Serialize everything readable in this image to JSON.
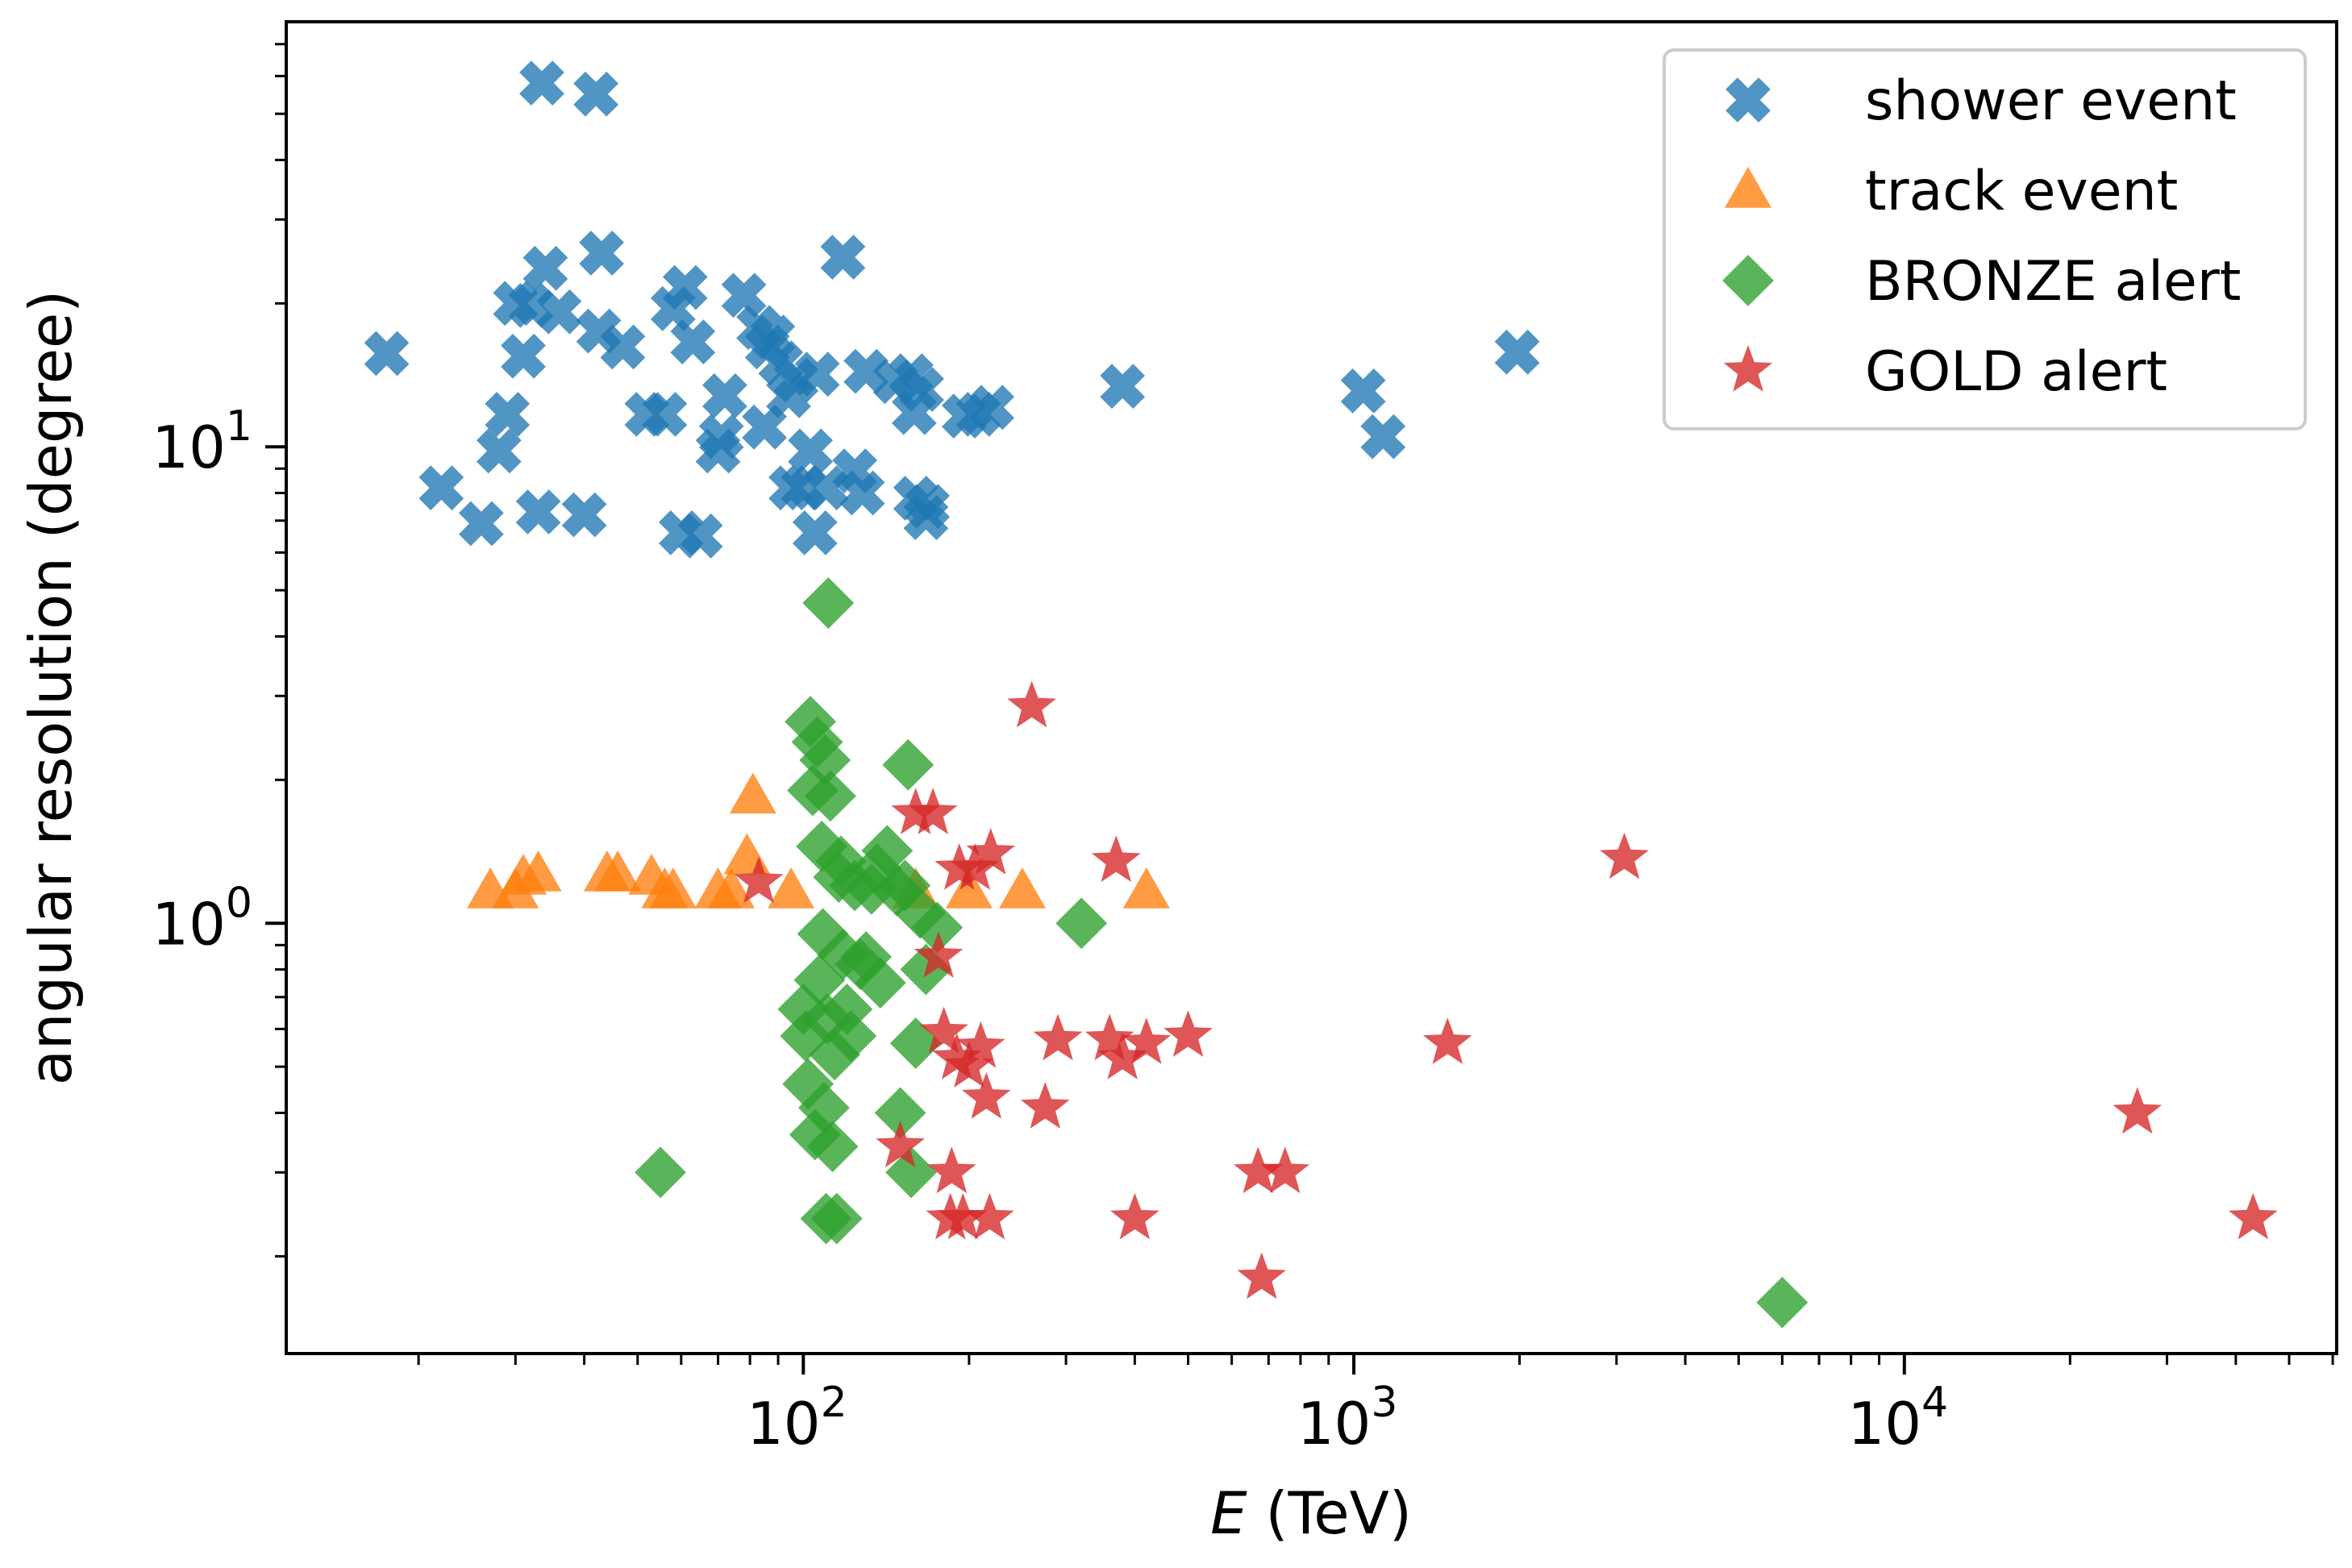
{
  "chart_data": {
    "type": "scatter",
    "title": "",
    "xlabel_var": "E",
    "xlabel_unit": " (TeV)",
    "ylabel": "angular resolution (degree)",
    "xscale": "log",
    "yscale": "log",
    "xlim": [
      11.5,
      61000
    ],
    "ylim": [
      0.125,
      78
    ],
    "x_ticks": [
      {
        "value": 100,
        "base": "10",
        "exp": "2"
      },
      {
        "value": 1000,
        "base": "10",
        "exp": "3"
      },
      {
        "value": 10000,
        "base": "10",
        "exp": "4"
      }
    ],
    "y_ticks": [
      {
        "value": 1,
        "base": "10",
        "exp": "0"
      },
      {
        "value": 10,
        "base": "10",
        "exp": "1"
      }
    ],
    "legend_position": "top-right",
    "series": [
      {
        "name": "shower event",
        "marker": "x",
        "color": "#1f77b4",
        "points": [
          [
            17.5,
            15.7
          ],
          [
            22,
            8.2
          ],
          [
            26,
            6.9
          ],
          [
            28,
            9.8
          ],
          [
            29,
            11.7
          ],
          [
            30,
            20
          ],
          [
            31,
            15.5
          ],
          [
            32,
            19.8
          ],
          [
            33,
            7.3
          ],
          [
            33.5,
            58
          ],
          [
            34,
            23.7
          ],
          [
            36,
            19.2
          ],
          [
            40,
            7.2
          ],
          [
            42,
            55
          ],
          [
            42.5,
            17.5
          ],
          [
            43,
            25.5
          ],
          [
            47,
            16.2
          ],
          [
            52,
            11.7
          ],
          [
            56,
            11.7
          ],
          [
            58,
            19.5
          ],
          [
            60,
            6.6
          ],
          [
            61,
            21.6
          ],
          [
            63,
            16.6
          ],
          [
            65,
            6.5
          ],
          [
            70,
            9.8
          ],
          [
            71,
            10.5
          ],
          [
            72,
            12.8
          ],
          [
            78,
            20.8
          ],
          [
            83,
            17.8
          ],
          [
            85,
            11
          ],
          [
            86,
            16.2
          ],
          [
            88,
            17
          ],
          [
            91,
            15
          ],
          [
            94,
            12.8
          ],
          [
            95,
            8.2
          ],
          [
            97,
            13.8
          ],
          [
            100,
            8.2
          ],
          [
            103,
            9.8
          ],
          [
            105,
            6.6
          ],
          [
            106,
            14.2
          ],
          [
            110,
            8.2
          ],
          [
            118,
            25
          ],
          [
            124,
            8.9
          ],
          [
            128,
            8
          ],
          [
            130,
            14.4
          ],
          [
            147,
            13.7
          ],
          [
            157,
            14.1
          ],
          [
            159,
            11.8
          ],
          [
            160,
            7.8
          ],
          [
            164,
            13.2
          ],
          [
            167,
            7.1
          ],
          [
            168,
            7.5
          ],
          [
            196,
            11.6
          ],
          [
            208,
            11.7
          ],
          [
            220,
            12.1
          ],
          [
            380,
            13.4
          ],
          [
            1040,
            13.1
          ],
          [
            1130,
            10.5
          ],
          [
            1980,
            15.8
          ]
        ]
      },
      {
        "name": "track event",
        "marker": "triangle",
        "color": "#ff7f0e",
        "points": [
          [
            27,
            1.17
          ],
          [
            30,
            1.17
          ],
          [
            31,
            1.25
          ],
          [
            33,
            1.27
          ],
          [
            44,
            1.27
          ],
          [
            46,
            1.27
          ],
          [
            53,
            1.25
          ],
          [
            56,
            1.17
          ],
          [
            58,
            1.17
          ],
          [
            70,
            1.17
          ],
          [
            74,
            1.17
          ],
          [
            79,
            1.38
          ],
          [
            81,
            1.85
          ],
          [
            95,
            1.17
          ],
          [
            160,
            1.17
          ],
          [
            200,
            1.17
          ],
          [
            250,
            1.17
          ],
          [
            420,
            1.17
          ]
        ]
      },
      {
        "name": "BRONZE alert",
        "marker": "diamond",
        "color": "#2ca02c",
        "points": [
          [
            55,
            0.3
          ],
          [
            100,
            0.66
          ],
          [
            101,
            0.58
          ],
          [
            102,
            0.46
          ],
          [
            103,
            2.65
          ],
          [
            104,
            1.9
          ],
          [
            105,
            0.36
          ],
          [
            106,
            2.4
          ],
          [
            107,
            0.76
          ],
          [
            108,
            1.45
          ],
          [
            108.5,
            0.95
          ],
          [
            109,
            0.41
          ],
          [
            109.5,
            2.2
          ],
          [
            110,
            0.24
          ],
          [
            110.5,
            0.63
          ],
          [
            111,
            4.7
          ],
          [
            112,
            1.85
          ],
          [
            113,
            0.34
          ],
          [
            114,
            0.53
          ],
          [
            115,
            0.24
          ],
          [
            116,
            1.25
          ],
          [
            117,
            1.35
          ],
          [
            118,
            0.86
          ],
          [
            120,
            0.66
          ],
          [
            122,
            0.58
          ],
          [
            124,
            1.2
          ],
          [
            127,
            0.82
          ],
          [
            130,
            0.85
          ],
          [
            133,
            1.18
          ],
          [
            136,
            1.3
          ],
          [
            138,
            0.75
          ],
          [
            142,
            1.42
          ],
          [
            148,
            1.17
          ],
          [
            150,
            0.4
          ],
          [
            153,
            1.2
          ],
          [
            155,
            2.15
          ],
          [
            157,
            0.3
          ],
          [
            160,
            0.56
          ],
          [
            163,
            1.05
          ],
          [
            167,
            0.8
          ],
          [
            175,
            0.98
          ],
          [
            320,
            1.0
          ],
          [
            6000,
            0.16
          ]
        ]
      },
      {
        "name": "GOLD alert",
        "marker": "star",
        "color": "#d62728",
        "points": [
          [
            83,
            1.22
          ],
          [
            150,
            0.34
          ],
          [
            160,
            1.7
          ],
          [
            172,
            1.7
          ],
          [
            176,
            0.85
          ],
          [
            180,
            0.59
          ],
          [
            185,
            0.24
          ],
          [
            186,
            0.3
          ],
          [
            190,
            0.52
          ],
          [
            192,
            1.3
          ],
          [
            195,
            0.24
          ],
          [
            200,
            0.5
          ],
          [
            205,
            1.3
          ],
          [
            210,
            0.55
          ],
          [
            215,
            0.43
          ],
          [
            218,
            0.24
          ],
          [
            219,
            1.4
          ],
          [
            260,
            2.85
          ],
          [
            275,
            0.41
          ],
          [
            290,
            0.57
          ],
          [
            360,
            0.57
          ],
          [
            370,
            1.35
          ],
          [
            380,
            0.52
          ],
          [
            400,
            0.24
          ],
          [
            420,
            0.56
          ],
          [
            500,
            0.58
          ],
          [
            670,
            0.3
          ],
          [
            680,
            0.18
          ],
          [
            750,
            0.3
          ],
          [
            1480,
            0.56
          ],
          [
            3100,
            1.37
          ],
          [
            26500,
            0.4
          ],
          [
            43000,
            0.24
          ]
        ]
      }
    ]
  }
}
